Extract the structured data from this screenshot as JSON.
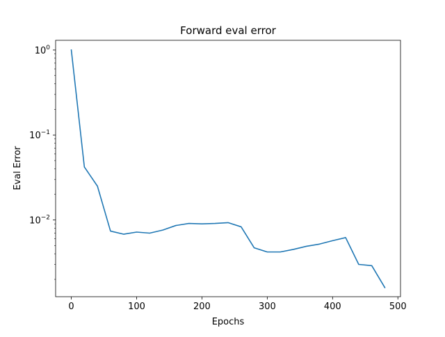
{
  "chart_data": {
    "type": "line",
    "title": "Forward eval error",
    "xlabel": "Epochs",
    "ylabel": "Eval Error",
    "yscale": "log",
    "xlim": [
      -24,
      504
    ],
    "ylim": [
      0.00125,
      1.3
    ],
    "xticks": [
      0,
      100,
      200,
      300,
      400,
      500
    ],
    "xtick_labels": [
      "0",
      "100",
      "200",
      "300",
      "400",
      "500"
    ],
    "yticks": [
      {
        "value": 1,
        "base": "10",
        "exp": "0"
      },
      {
        "value": 0.1,
        "base": "10",
        "exp": "−1"
      },
      {
        "value": 0.01,
        "base": "10",
        "exp": "−2"
      }
    ],
    "grid": false,
    "series": [
      {
        "name": "Forward eval error",
        "color": "#1f77b4",
        "x": [
          0,
          20,
          40,
          60,
          80,
          100,
          120,
          140,
          160,
          180,
          200,
          220,
          240,
          260,
          280,
          300,
          320,
          340,
          360,
          380,
          400,
          420,
          440,
          460,
          480
        ],
        "y": [
          1.0,
          0.042,
          0.025,
          0.0074,
          0.0068,
          0.0072,
          0.007,
          0.0076,
          0.0086,
          0.0091,
          0.009,
          0.0091,
          0.0093,
          0.0083,
          0.0047,
          0.0042,
          0.0042,
          0.0045,
          0.0049,
          0.0052,
          0.0057,
          0.0062,
          0.003,
          0.0029,
          0.0016
        ]
      }
    ]
  }
}
